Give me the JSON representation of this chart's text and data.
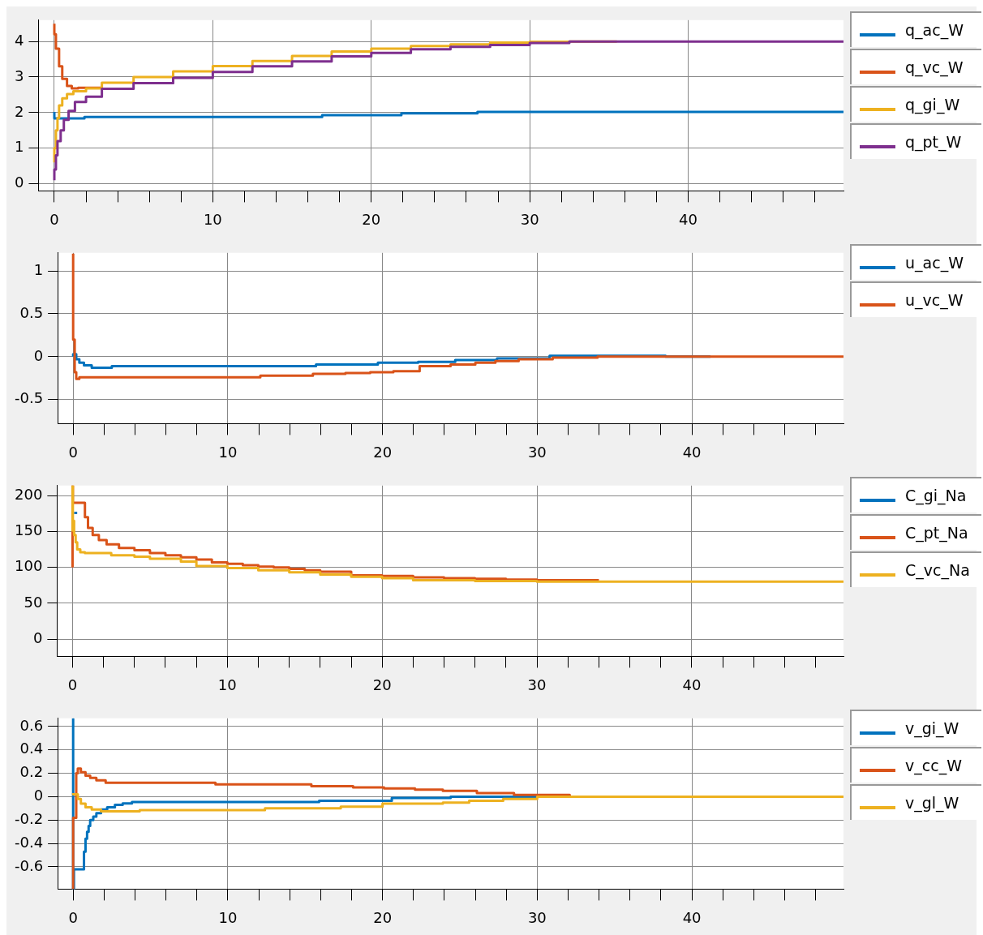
{
  "chart_data": [
    {
      "type": "step",
      "xlim": [
        -1,
        49.8
      ],
      "ylim": [
        -0.2,
        4.6
      ],
      "xticks": [
        0,
        {
          "value": 2,
          "label": null
        },
        {
          "value": 4,
          "label": null
        },
        {
          "value": 6,
          "label": null
        },
        {
          "value": 8,
          "label": null
        },
        10,
        {
          "value": 12,
          "label": null
        },
        {
          "value": 14,
          "label": null
        },
        {
          "value": 16,
          "label": null
        },
        {
          "value": 18,
          "label": null
        },
        20,
        {
          "value": 22,
          "label": null
        },
        {
          "value": 24,
          "label": null
        },
        {
          "value": 26,
          "label": null
        },
        {
          "value": 28,
          "label": null
        },
        30,
        {
          "value": 32,
          "label": null
        },
        {
          "value": 34,
          "label": null
        },
        {
          "value": 36,
          "label": null
        },
        {
          "value": 38,
          "label": null
        },
        40,
        {
          "value": 42,
          "label": null
        },
        {
          "value": 44,
          "label": null
        },
        {
          "value": 46,
          "label": null
        },
        {
          "value": 48,
          "label": null
        }
      ],
      "yticks": [
        0,
        1,
        2,
        3,
        4
      ],
      "grid": true,
      "legend": "right",
      "series": [
        {
          "name": "q_ac_W",
          "color": "#0072bd",
          "x": [
            0,
            1.9,
            16.9,
            21.9,
            26.7,
            38.5,
            49.8
          ],
          "values": [
            2.02,
            1.84,
            1.88,
            1.93,
            1.98,
            2.02,
            2.02
          ]
        },
        {
          "name": "q_vc_W",
          "color": "#d95319",
          "x": [
            0,
            0.1,
            0.3,
            0.5,
            0.8,
            1.1,
            1.5,
            3
          ],
          "values": [
            4.5,
            4.2,
            3.8,
            3.3,
            2.95,
            2.75,
            2.68,
            2.7
          ]
        },
        {
          "name": "q_gi_W",
          "color": "#edb120",
          "x": [
            0,
            0.1,
            0.2,
            0.3,
            0.5,
            0.8,
            1.2,
            2,
            3,
            5,
            7.5,
            10,
            12.5,
            15,
            17.5,
            20,
            22.5,
            25,
            27.5,
            30,
            32.5,
            35.5
          ],
          "values": [
            0.6,
            1.0,
            1.5,
            1.85,
            2.2,
            2.4,
            2.52,
            2.6,
            2.68,
            2.84,
            3.0,
            3.16,
            3.31,
            3.45,
            3.59,
            3.72,
            3.8,
            3.87,
            3.92,
            3.97,
            3.99,
            4.0
          ]
        },
        {
          "name": "q_pt_W",
          "color": "#7e2f8e",
          "x": [
            0,
            0.1,
            0.2,
            0.4,
            0.6,
            0.9,
            1.3,
            2,
            3,
            5,
            7.5,
            10,
            12.5,
            15,
            17.5,
            20,
            22.5,
            25,
            27.5,
            30,
            32.5,
            35.5,
            49.8
          ],
          "values": [
            0.1,
            0.4,
            0.8,
            1.2,
            1.5,
            1.8,
            2.05,
            2.3,
            2.45,
            2.67,
            2.83,
            2.98,
            3.14,
            3.3,
            3.44,
            3.58,
            3.68,
            3.78,
            3.85,
            3.9,
            3.96,
            4.0,
            4.0
          ]
        }
      ]
    },
    {
      "type": "step",
      "xlim": [
        -1,
        49.8
      ],
      "ylim": [
        -0.78,
        1.21
      ],
      "xticks": [
        0,
        {
          "value": 2,
          "label": null
        },
        {
          "value": 4,
          "label": null
        },
        {
          "value": 6,
          "label": null
        },
        {
          "value": 8,
          "label": null
        },
        10,
        {
          "value": 12,
          "label": null
        },
        {
          "value": 14,
          "label": null
        },
        {
          "value": 16,
          "label": null
        },
        {
          "value": 18,
          "label": null
        },
        20,
        {
          "value": 22,
          "label": null
        },
        {
          "value": 24,
          "label": null
        },
        {
          "value": 26,
          "label": null
        },
        {
          "value": 28,
          "label": null
        },
        30,
        {
          "value": 32,
          "label": null
        },
        {
          "value": 34,
          "label": null
        },
        {
          "value": 36,
          "label": null
        },
        {
          "value": 38,
          "label": null
        },
        40,
        {
          "value": 42,
          "label": null
        },
        {
          "value": 44,
          "label": null
        },
        {
          "value": 46,
          "label": null
        },
        {
          "value": 48,
          "label": null
        }
      ],
      "yticks": [
        -0.5,
        0,
        0.5,
        1
      ],
      "grid": true,
      "legend": "right",
      "series": [
        {
          "name": "u_ac_W",
          "color": "#0072bd",
          "x": [
            0,
            0.2,
            0.4,
            0.7,
            1.2,
            2.5,
            15.7,
            19.7,
            22.3,
            24.7,
            27.4,
            30.8,
            38.3,
            41.2
          ],
          "values": [
            0,
            0.03,
            -0.03,
            -0.07,
            -0.1,
            -0.13,
            -0.11,
            -0.09,
            -0.07,
            -0.06,
            -0.04,
            -0.02,
            0.01,
            0
          ]
        },
        {
          "name": "u_vc_W",
          "color": "#d95319",
          "x": [
            0,
            0.1,
            0.2,
            0.4,
            12.1,
            15.5,
            17.6,
            19.2,
            20.7,
            22.4,
            24.4,
            26,
            27.3,
            28.8,
            31,
            33.9,
            41.2,
            49.8
          ],
          "values": [
            1.2,
            0.2,
            -0.18,
            -0.26,
            -0.24,
            -0.22,
            -0.2,
            -0.19,
            -0.18,
            -0.17,
            -0.11,
            -0.09,
            -0.07,
            -0.05,
            -0.03,
            -0.01,
            0,
            0
          ]
        }
      ]
    },
    {
      "type": "step",
      "xlim": [
        -1,
        49.8
      ],
      "ylim": [
        -24,
        214
      ],
      "xticks": [
        0,
        {
          "value": 2,
          "label": null
        },
        {
          "value": 4,
          "label": null
        },
        {
          "value": 6,
          "label": null
        },
        {
          "value": 8,
          "label": null
        },
        10,
        {
          "value": 12,
          "label": null
        },
        {
          "value": 14,
          "label": null
        },
        {
          "value": 16,
          "label": null
        },
        {
          "value": 18,
          "label": null
        },
        20,
        {
          "value": 22,
          "label": null
        },
        {
          "value": 24,
          "label": null
        },
        {
          "value": 26,
          "label": null
        },
        {
          "value": 28,
          "label": null
        },
        30,
        {
          "value": 32,
          "label": null
        },
        {
          "value": 34,
          "label": null
        },
        {
          "value": 36,
          "label": null
        },
        {
          "value": 38,
          "label": null
        },
        40,
        {
          "value": 42,
          "label": null
        },
        {
          "value": 44,
          "label": null
        },
        {
          "value": 46,
          "label": null
        },
        {
          "value": 48,
          "label": null
        }
      ],
      "yticks": [
        0,
        50,
        100,
        150,
        200
      ],
      "grid": true,
      "legend": "right",
      "series": [
        {
          "name": "C_gi_Na",
          "color": "#0072bd",
          "x": [
            0.1,
            0.3
          ],
          "values": [
            176,
            176
          ]
        },
        {
          "name": "C_pt_Na",
          "color": "#d95319",
          "x": [
            0,
            0.02,
            0.8,
            1.0,
            1.3,
            1.7,
            2.2,
            3,
            4,
            5,
            6,
            7,
            8,
            9,
            10,
            11,
            12,
            13,
            14,
            15,
            16,
            18,
            20,
            22,
            24,
            26,
            28,
            30,
            34
          ],
          "values": [
            100,
            214,
            190,
            170,
            155,
            145,
            138,
            132,
            127,
            124,
            120,
            117,
            114,
            111,
            107,
            105,
            103,
            101,
            100,
            98,
            96,
            94,
            89,
            88,
            86,
            85,
            84,
            83,
            82
          ]
        },
        {
          "name": "C_vc_Na",
          "color": "#edb120",
          "x": [
            0,
            0.02,
            0.1,
            0.2,
            0.3,
            0.5,
            0.8,
            2.5,
            4,
            5,
            7,
            8,
            10,
            12,
            14,
            16,
            18,
            20,
            22,
            26,
            30,
            33,
            49.8
          ],
          "values": [
            150,
            214,
            165,
            145,
            135,
            125,
            121,
            120,
            117,
            115,
            112,
            108,
            102,
            99,
            96,
            93,
            90,
            87,
            85,
            82,
            81,
            80,
            80
          ]
        }
      ]
    },
    {
      "type": "step",
      "xlim": [
        -1,
        49.8
      ],
      "ylim": [
        -0.79,
        0.67
      ],
      "xticks": [
        0,
        {
          "value": 2,
          "label": null
        },
        {
          "value": 4,
          "label": null
        },
        {
          "value": 6,
          "label": null
        },
        {
          "value": 8,
          "label": null
        },
        10,
        {
          "value": 12,
          "label": null
        },
        {
          "value": 14,
          "label": null
        },
        {
          "value": 16,
          "label": null
        },
        {
          "value": 18,
          "label": null
        },
        20,
        {
          "value": 22,
          "label": null
        },
        {
          "value": 24,
          "label": null
        },
        {
          "value": 26,
          "label": null
        },
        {
          "value": 28,
          "label": null
        },
        30,
        {
          "value": 32,
          "label": null
        },
        {
          "value": 34,
          "label": null
        },
        {
          "value": 36,
          "label": null
        },
        {
          "value": 38,
          "label": null
        },
        40,
        {
          "value": 42,
          "label": null
        },
        {
          "value": 44,
          "label": null
        },
        {
          "value": 46,
          "label": null
        },
        {
          "value": 48,
          "label": null
        }
      ],
      "yticks": [
        -0.6,
        -0.4,
        -0.2,
        0,
        0.2,
        0.4,
        0.6
      ],
      "grid": true,
      "legend": "right",
      "series": [
        {
          "name": "v_gi_W",
          "color": "#0072bd",
          "x": [
            0,
            0.05,
            0.7,
            0.8,
            0.9,
            1.0,
            1.1,
            1.3,
            1.5,
            1.8,
            2.2,
            2.7,
            3.2,
            3.8,
            15.9,
            20.6,
            24.4,
            29.1,
            32.1
          ],
          "values": [
            0.67,
            -0.79,
            -0.62,
            -0.47,
            -0.36,
            -0.3,
            -0.25,
            -0.2,
            -0.17,
            -0.14,
            -0.11,
            -0.09,
            -0.07,
            -0.057,
            -0.045,
            -0.035,
            -0.01,
            0,
            0
          ]
        },
        {
          "name": "v_cc_W",
          "color": "#d95319",
          "x": [
            0,
            0.2,
            0.3,
            0.5,
            0.8,
            1.1,
            1.5,
            2.1,
            9.2,
            15.4,
            18.1,
            20.1,
            22.1,
            23.9,
            26.1,
            28.5,
            32.1,
            44.9
          ],
          "values": [
            -0.79,
            -0.18,
            0.2,
            0.24,
            0.21,
            0.18,
            0.16,
            0.14,
            0.12,
            0.105,
            0.09,
            0.08,
            0.07,
            0.06,
            0.05,
            0.03,
            0.015,
            0
          ]
        },
        {
          "name": "v_gl_W",
          "color": "#edb120",
          "x": [
            0,
            0.3,
            0.5,
            0.8,
            1.2,
            1.8,
            4.3,
            12.4,
            17.3,
            20,
            23.9,
            25.6,
            27.8,
            30,
            34,
            49.8
          ],
          "values": [
            0.03,
            0.02,
            -0.02,
            -0.06,
            -0.09,
            -0.11,
            -0.125,
            -0.115,
            -0.1,
            -0.085,
            -0.06,
            -0.05,
            -0.035,
            -0.02,
            0,
            0
          ]
        }
      ]
    }
  ]
}
